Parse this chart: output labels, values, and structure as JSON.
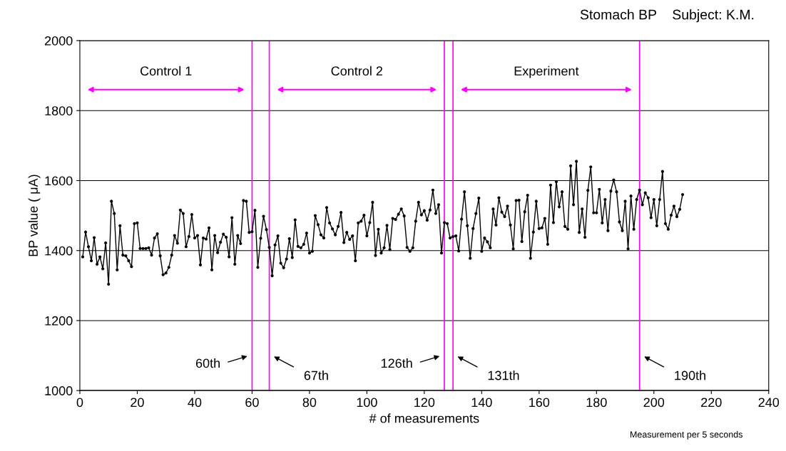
{
  "chart_data": {
    "type": "line",
    "title": "Stomach BP    Subject: K.M.",
    "xlabel": "# of measurements",
    "ylabel": "BP value ( μA)",
    "annotations": [
      "Measurement per 5 seconds",
      "Control 1",
      "Control 2",
      "Experiment"
    ],
    "series": [
      {
        "color": "#000000",
        "x": [
          1,
          2,
          3,
          4,
          5,
          6,
          7,
          8,
          9,
          10,
          11,
          12,
          13,
          14,
          15,
          16,
          17,
          18,
          19,
          20,
          21,
          22,
          23,
          24,
          25,
          26,
          27,
          28,
          29,
          30,
          31,
          32,
          33,
          34,
          35,
          36,
          37,
          38,
          39,
          40,
          41,
          42,
          43,
          44,
          45,
          46,
          47,
          48,
          49,
          50,
          51,
          52,
          53,
          54,
          55,
          56,
          57,
          58,
          59,
          60,
          61,
          62,
          63,
          64,
          65,
          66,
          67,
          68,
          69,
          70,
          71,
          72,
          73,
          74,
          75,
          76,
          77,
          78,
          79,
          80,
          81,
          82,
          83,
          84,
          85,
          86,
          87,
          88,
          89,
          90,
          91,
          92,
          93,
          94,
          95,
          96,
          97,
          98,
          99,
          100,
          101,
          102,
          103,
          104,
          105,
          106,
          107,
          108,
          109,
          110,
          111,
          112,
          113,
          114,
          115,
          116,
          117,
          118,
          119,
          120,
          121,
          122,
          123,
          124,
          125,
          126,
          127,
          128,
          129,
          130,
          131,
          132,
          133,
          134,
          135,
          136,
          137,
          138,
          139,
          140,
          141,
          142,
          143,
          144,
          145,
          146,
          147,
          148,
          149,
          150,
          151,
          152,
          153,
          154,
          155,
          156,
          157,
          158,
          159,
          160,
          161,
          162,
          163,
          164,
          165,
          166,
          167,
          168,
          169,
          170,
          171,
          172,
          173,
          174,
          175,
          176,
          177,
          178,
          179,
          180,
          181,
          182,
          183,
          184,
          185,
          186,
          187,
          188,
          189,
          190,
          191,
          192,
          193,
          194,
          195,
          196,
          197,
          198,
          199,
          200,
          201,
          202,
          203,
          204,
          205,
          206,
          207,
          208,
          209,
          210
        ],
        "values": [
          1382,
          1453,
          1411,
          1371,
          1437,
          1361,
          1382,
          1348,
          1422,
          1304,
          1541,
          1506,
          1345,
          1471,
          1387,
          1385,
          1371,
          1354,
          1477,
          1479,
          1406,
          1406,
          1406,
          1408,
          1387,
          1436,
          1448,
          1385,
          1331,
          1336,
          1352,
          1387,
          1443,
          1421,
          1516,
          1506,
          1411,
          1440,
          1503,
          1436,
          1443,
          1359,
          1436,
          1433,
          1465,
          1345,
          1443,
          1394,
          1424,
          1447,
          1438,
          1382,
          1494,
          1361,
          1443,
          1420,
          1543,
          1541,
          1452,
          1454,
          1515,
          1352,
          1435,
          1498,
          1460,
          1409,
          1328,
          1416,
          1442,
          1364,
          1351,
          1376,
          1434,
          1380,
          1488,
          1412,
          1408,
          1418,
          1450,
          1393,
          1398,
          1500,
          1474,
          1445,
          1436,
          1523,
          1479,
          1462,
          1445,
          1469,
          1509,
          1423,
          1452,
          1432,
          1442,
          1371,
          1479,
          1484,
          1501,
          1442,
          1480,
          1538,
          1386,
          1461,
          1393,
          1408,
          1472,
          1403,
          1492,
          1489,
          1504,
          1519,
          1499,
          1409,
          1398,
          1408,
          1484,
          1538,
          1502,
          1514,
          1487,
          1516,
          1573,
          1506,
          1531,
          1393,
          1480,
          1477,
          1436,
          1440,
          1442,
          1399,
          1490,
          1568,
          1471,
          1378,
          1463,
          1506,
          1550,
          1398,
          1436,
          1425,
          1408,
          1519,
          1473,
          1551,
          1510,
          1497,
          1527,
          1473,
          1405,
          1543,
          1544,
          1426,
          1511,
          1558,
          1378,
          1453,
          1541,
          1463,
          1465,
          1492,
          1418,
          1587,
          1480,
          1597,
          1525,
          1568,
          1469,
          1461,
          1642,
          1531,
          1655,
          1452,
          1519,
          1438,
          1572,
          1639,
          1508,
          1508,
          1575,
          1479,
          1546,
          1457,
          1570,
          1602,
          1568,
          1482,
          1457,
          1541,
          1405,
          1556,
          1461,
          1546,
          1573,
          1531,
          1565,
          1551,
          1494,
          1546,
          1471,
          1546,
          1626,
          1477,
          1461,
          1501,
          1527,
          1497,
          1518,
          1560
        ]
      }
    ],
    "marker": "circle",
    "line_style": "solid",
    "xlim": [
      0,
      240
    ],
    "xticks": [
      0,
      20,
      40,
      60,
      80,
      100,
      120,
      140,
      160,
      180,
      200,
      220,
      240
    ],
    "ylim": [
      1000,
      2000
    ],
    "yticks": [
      1000,
      1200,
      1400,
      1600,
      1800,
      2000
    ],
    "grid": "y",
    "legend": false,
    "ref_lines": [
      {
        "axis": "x",
        "value": 60,
        "label": "60th",
        "color": "#ff00ff"
      },
      {
        "axis": "x",
        "value": 66,
        "label": "67th",
        "color": "#ff00ff"
      },
      {
        "axis": "x",
        "value": 127,
        "label": "126th",
        "color": "#ff00ff"
      },
      {
        "axis": "x",
        "value": 130,
        "label": "131th",
        "color": "#ff00ff"
      },
      {
        "axis": "x",
        "value": 195,
        "label": "190th",
        "color": "#ff00ff"
      }
    ]
  }
}
